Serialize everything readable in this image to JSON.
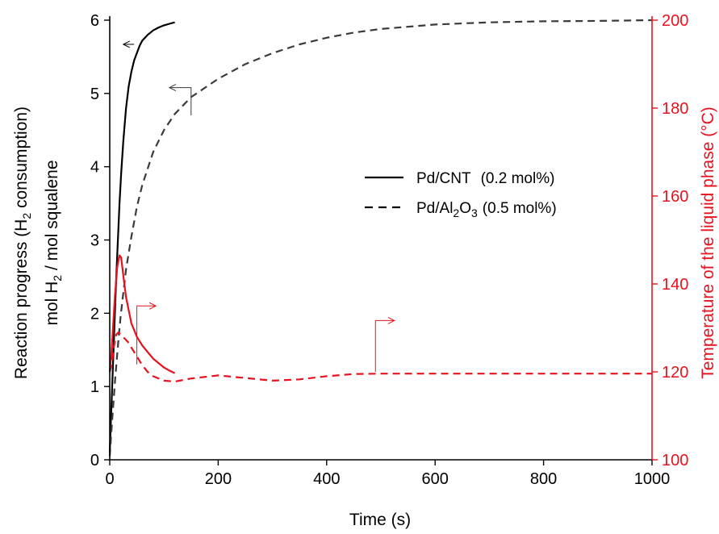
{
  "chart_data": {
    "type": "line",
    "title": "",
    "xlabel": "Time (s)",
    "ylabel": [
      "Reaction progress (H",
      "2",
      " consumption)"
    ],
    "ylabel2": [
      "mol H",
      "2",
      " / mol squalene"
    ],
    "y2label": "Temperature of the liquid phase (°C)",
    "xlim": [
      0,
      1000
    ],
    "ylim": [
      0,
      6
    ],
    "y2lim": [
      100,
      200
    ],
    "xticks": [
      0,
      200,
      400,
      600,
      800,
      1000
    ],
    "yticks": [
      0,
      1,
      2,
      3,
      4,
      5,
      6
    ],
    "y2ticks": [
      100,
      120,
      140,
      160,
      180,
      200
    ],
    "grid": false,
    "legend_position": "top-right",
    "colors": {
      "left_axis": "#000000",
      "right_axis": "#e8121e",
      "series_dark": "#000000",
      "series_gray": "#3a3a3a",
      "series_red": "#e8121e"
    },
    "legend": [
      {
        "name": "Pd/CNT",
        "suffix": "(0.2 mol%)",
        "style": "solid"
      },
      {
        "name": "Pd/Al",
        "sub": "2",
        "mid": "O",
        "sub2": "3",
        "suffix": "(0.5 mol%)",
        "style": "dashed"
      }
    ],
    "series": [
      {
        "name": "Pd/CNT",
        "axis": "left",
        "style": "solid",
        "color": "#000000",
        "x": [
          0,
          2,
          4,
          6,
          8,
          10,
          12,
          15,
          18,
          21,
          25,
          30,
          35,
          40,
          45,
          50,
          55,
          60,
          70,
          80,
          90,
          100,
          110,
          120
        ],
        "y": [
          0.1,
          0.5,
          0.9,
          1.3,
          1.7,
          2.1,
          2.5,
          3.0,
          3.5,
          3.9,
          4.35,
          4.8,
          5.1,
          5.3,
          5.45,
          5.55,
          5.65,
          5.72,
          5.8,
          5.86,
          5.9,
          5.93,
          5.95,
          5.97
        ]
      },
      {
        "name": "Pd/Al2O3",
        "axis": "left",
        "style": "dashed",
        "color": "#3a3a3a",
        "x": [
          0,
          5,
          10,
          15,
          20,
          30,
          40,
          50,
          60,
          80,
          100,
          120,
          150,
          200,
          250,
          300,
          350,
          400,
          450,
          500,
          600,
          700,
          800,
          900,
          1000
        ],
        "y": [
          0.05,
          0.6,
          1.1,
          1.55,
          1.95,
          2.6,
          3.05,
          3.45,
          3.75,
          4.2,
          4.5,
          4.72,
          4.95,
          5.2,
          5.4,
          5.55,
          5.67,
          5.76,
          5.83,
          5.88,
          5.94,
          5.97,
          5.985,
          5.99,
          6.0
        ]
      },
      {
        "name": "Pd/CNT temperature",
        "axis": "right",
        "style": "solid",
        "color": "#e8121e",
        "x": [
          0,
          3,
          6,
          10,
          14,
          18,
          21,
          24,
          27,
          30,
          35,
          40,
          50,
          60,
          70,
          80,
          90,
          100,
          110,
          120
        ],
        "y": [
          120,
          124,
          130,
          138,
          144,
          146.5,
          146,
          143,
          140,
          137,
          134,
          131,
          128,
          126,
          124.5,
          123,
          122,
          121,
          120.3,
          119.7
        ]
      },
      {
        "name": "Pd/Al2O3 temperature",
        "axis": "right",
        "style": "dashed",
        "color": "#e8121e",
        "x": [
          0,
          4,
          8,
          12,
          16,
          20,
          24,
          28,
          32,
          36,
          40,
          50,
          60,
          70,
          80,
          100,
          120,
          150,
          200,
          250,
          300,
          350,
          400,
          450,
          500,
          600,
          700,
          800,
          900,
          1000
        ],
        "y": [
          120,
          122,
          126,
          128.5,
          129,
          128.5,
          128,
          127.5,
          127,
          126.5,
          125.5,
          123.5,
          121.5,
          120,
          119,
          118,
          117.8,
          118.5,
          119.2,
          118.6,
          118,
          118.3,
          119,
          119.5,
          119.6,
          119.6,
          119.6,
          119.6,
          119.6,
          119.6
        ]
      }
    ],
    "annotations": [
      {
        "type": "axis-arrow",
        "direction": "left",
        "color": "#000000",
        "x": 45,
        "y": 5.67,
        "tail_x": 25
      },
      {
        "type": "axis-arrow",
        "direction": "left",
        "color": "#3a3a3a",
        "x": 150,
        "y": 5.08,
        "corner_y": 4.7,
        "tail_x": 110
      },
      {
        "type": "axis-arrow",
        "direction": "right",
        "color": "#e8121e",
        "x": 50,
        "y": 1.3,
        "corner_y": 2.1,
        "tail_x": 85
      },
      {
        "type": "axis-arrow",
        "direction": "right",
        "color": "#e8121e",
        "x": 490,
        "y": 1.2,
        "corner_y": 1.9,
        "tail_x": 525
      }
    ]
  }
}
